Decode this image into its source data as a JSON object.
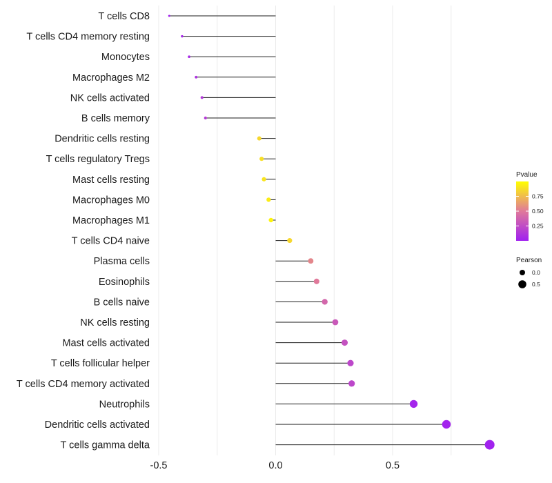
{
  "chart_data": {
    "type": "lollipop",
    "categories": [
      "T cells CD8",
      "T cells CD4 memory resting",
      "Monocytes",
      "Macrophages M2",
      "NK cells activated",
      "B cells memory",
      "Dendritic cells resting",
      "T cells regulatory  Tregs ",
      "Mast cells resting",
      "Macrophages M0",
      "Macrophages M1",
      "T cells CD4 naive",
      "Plasma cells",
      "Eosinophils",
      "B cells naive",
      "NK cells resting",
      "Mast cells activated",
      "T cells follicular helper",
      "T cells CD4 memory activated",
      "Neutrophils",
      "Dendritic cells activated",
      "T cells gamma delta"
    ],
    "pearson": [
      -0.455,
      -0.4,
      -0.37,
      -0.34,
      -0.315,
      -0.3,
      -0.07,
      -0.06,
      -0.05,
      -0.03,
      -0.02,
      0.06,
      0.15,
      0.175,
      0.21,
      0.255,
      0.295,
      0.32,
      0.325,
      0.59,
      0.73,
      0.915
    ],
    "pvalue": [
      0.02,
      0.05,
      0.06,
      0.1,
      0.14,
      0.16,
      0.85,
      0.88,
      0.9,
      0.93,
      0.96,
      0.85,
      0.55,
      0.5,
      0.4,
      0.32,
      0.28,
      0.22,
      0.22,
      0.03,
      0.02,
      0.01
    ],
    "xlim": [
      -0.5,
      0.95
    ],
    "x_ticks": [
      -0.5,
      0.0,
      0.5
    ],
    "x_tick_labels": [
      "-0.5",
      "0.0",
      "0.5"
    ],
    "title": "",
    "xlabel": "",
    "ylabel": "",
    "grid": true,
    "colorbar": {
      "title": "Pvalue",
      "ticks": [
        0.25,
        0.5,
        0.75
      ],
      "tick_labels": [
        "0.25",
        "0.50",
        "0.75"
      ],
      "range": [
        0.0,
        1.0
      ],
      "low_color": "#a020f0",
      "high_color": "#ffff00"
    },
    "size_legend": {
      "title": "Pearson",
      "values": [
        0.0,
        0.5
      ],
      "labels": [
        "0.0",
        "0.5"
      ]
    },
    "legend_position": "right"
  }
}
